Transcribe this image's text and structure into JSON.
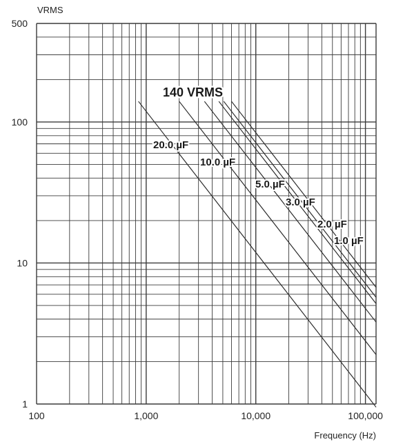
{
  "chart_data": {
    "type": "line",
    "title": "",
    "annotation": "140 VRMS",
    "xlabel": "Frequency (Hz)",
    "ylabel": "VRMS",
    "x_scale": "log",
    "y_scale": "log",
    "xlim": [
      100,
      125000
    ],
    "ylim": [
      1,
      500
    ],
    "grid": true,
    "x_ticks": [
      {
        "value": 100,
        "label": "100"
      },
      {
        "value": 1000,
        "label": "1,000"
      },
      {
        "value": 10000,
        "label": "10,000"
      },
      {
        "value": 100000,
        "label": "100,000"
      }
    ],
    "y_ticks": [
      {
        "value": 1,
        "label": "1"
      },
      {
        "value": 10,
        "label": "10"
      },
      {
        "value": 100,
        "label": "100"
      },
      {
        "value": 500,
        "label": "500"
      }
    ],
    "series": [
      {
        "name": "20.0 µF",
        "points": [
          [
            850,
            140
          ],
          [
            125000,
            0.95
          ]
        ]
      },
      {
        "name": "10.0 µF",
        "points": [
          [
            2000,
            140
          ],
          [
            125000,
            2.24
          ]
        ]
      },
      {
        "name": "5.0 µF",
        "points": [
          [
            3400,
            140
          ],
          [
            125000,
            3.81
          ]
        ]
      },
      {
        "name": "3.0 µF",
        "points": [
          [
            4600,
            140
          ],
          [
            125000,
            5.15
          ]
        ]
      },
      {
        "name": "2.0 µF",
        "points": [
          [
            5100,
            140
          ],
          [
            125000,
            5.71
          ]
        ]
      },
      {
        "name": "1.0 µF",
        "points": [
          [
            6000,
            140
          ],
          [
            125000,
            6.72
          ]
        ]
      }
    ],
    "line_color": "#2b2b2b",
    "grid_color": "#3a3a3a"
  }
}
